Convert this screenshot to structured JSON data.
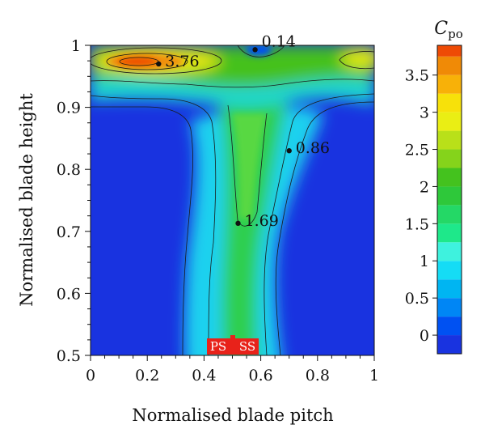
{
  "chart_data": {
    "type": "heatmap",
    "title": "",
    "xlabel": "Normalised blade pitch",
    "ylabel": "Normalised blade height",
    "xlim": [
      0,
      1
    ],
    "ylim": [
      0.5,
      1
    ],
    "x_ticks": [
      "0",
      "0.2",
      "0.4",
      "0.6",
      "0.8",
      "1"
    ],
    "y_ticks": [
      "0.5",
      "0.6",
      "0.7",
      "0.8",
      "0.9",
      "1"
    ],
    "colorbar": {
      "title": "C",
      "title_subscript": "po",
      "range": [
        -0.25,
        3.9
      ],
      "ticks": [
        "0",
        "0.5",
        "1",
        "1.5",
        "2",
        "2.5",
        "3",
        "3.5"
      ],
      "tick_values": [
        0,
        0.5,
        1,
        1.5,
        2,
        2.5,
        3,
        3.5
      ],
      "levels": [
        -0.25,
        0,
        0.25,
        0.5,
        0.75,
        1,
        1.25,
        1.5,
        1.75,
        2,
        2.25,
        2.5,
        2.75,
        3,
        3.25,
        3.5,
        3.75,
        3.9
      ],
      "colors": [
        "#1933e0",
        "#0051f2",
        "#0086f5",
        "#00b5f2",
        "#15dcf5",
        "#3ef2de",
        "#1ee88a",
        "#24d866",
        "#2ec83a",
        "#44c21e",
        "#85d31b",
        "#b9e019",
        "#eaee14",
        "#f7e10a",
        "#f8b108",
        "#f08a06",
        "#ee4b05"
      ]
    },
    "annotations": [
      {
        "label": "3.76",
        "x": 0.24,
        "y": 0.97
      },
      {
        "label": "0.14",
        "x": 0.58,
        "y": 0.993
      },
      {
        "label": "0.86",
        "x": 0.7,
        "y": 0.83
      },
      {
        "label": "1.69",
        "x": 0.52,
        "y": 0.713
      }
    ],
    "markers": {
      "ps_label": "PS",
      "ss_label": "SS",
      "position_x": 0.5
    }
  }
}
